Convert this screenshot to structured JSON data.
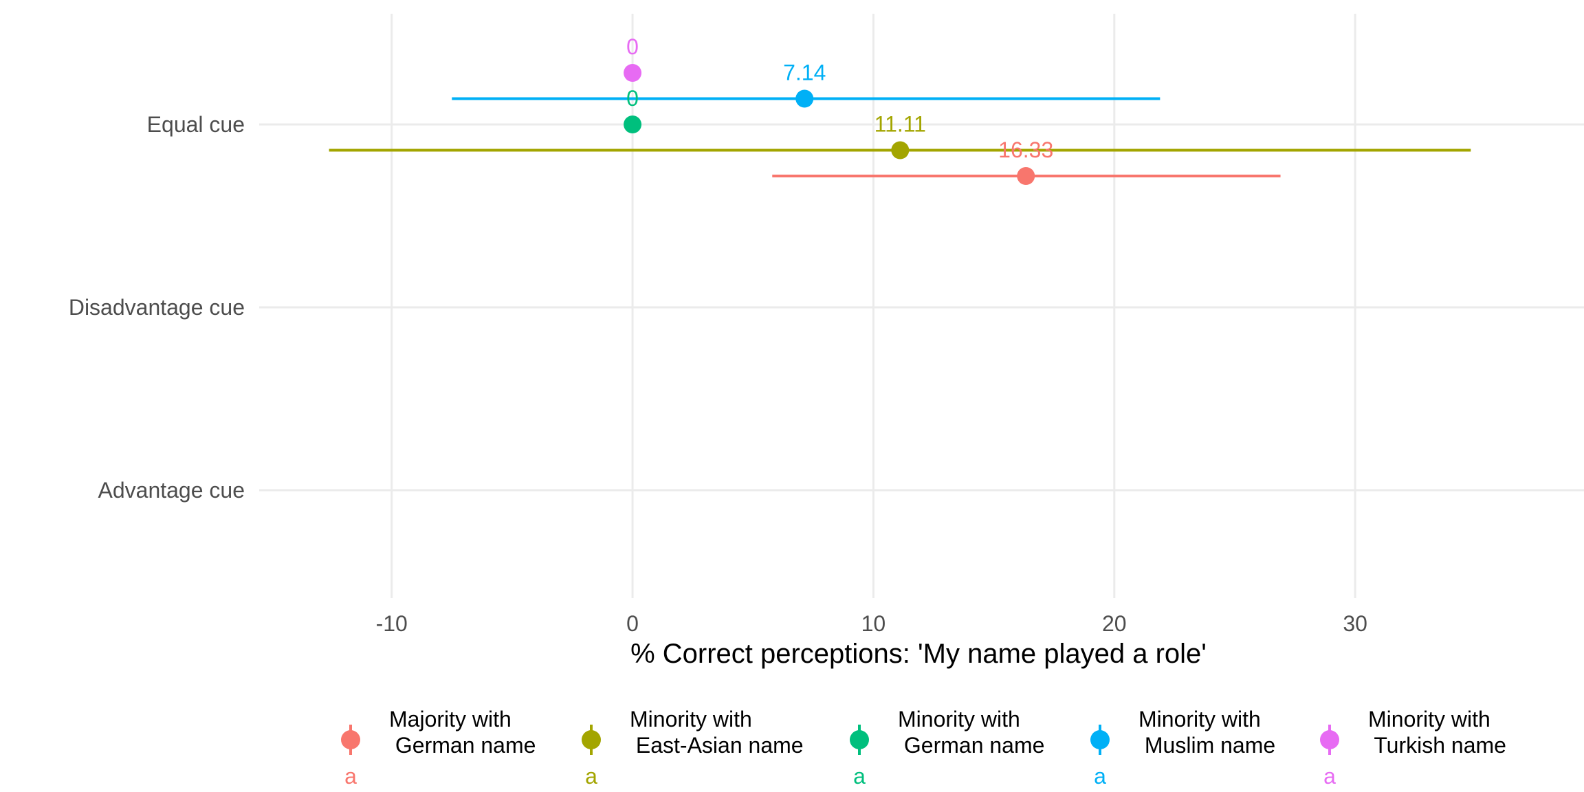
{
  "chart_data": {
    "type": "scatter",
    "subtype": "dot-with-error-bars",
    "title": "",
    "xlabel": "% Correct perceptions: 'My name played a role'",
    "ylabel": "",
    "xlim": [
      -15.5,
      39.5
    ],
    "x_ticks": [
      {
        "value": -10,
        "label": "-10"
      },
      {
        "value": 0,
        "label": "0"
      },
      {
        "value": 10,
        "label": "10"
      },
      {
        "value": 20,
        "label": "20"
      },
      {
        "value": 30,
        "label": "30"
      }
    ],
    "categories": [
      "Equal cue",
      "Disadvantage cue",
      "Advantage cue"
    ],
    "grid": true,
    "legend_position": "bottom",
    "series": [
      {
        "name": "Majority with\n German name",
        "color": "#F8766D",
        "legend_glyph": "a",
        "points": [
          {
            "category": "Equal cue",
            "value": 16.33,
            "lower": 5.8,
            "upper": 26.9,
            "label": "16.33"
          }
        ]
      },
      {
        "name": "Minority with\n East-Asian name",
        "color": "#A3A500",
        "legend_glyph": "a",
        "points": [
          {
            "category": "Equal cue",
            "value": 11.11,
            "lower": -12.6,
            "upper": 34.8,
            "label": "11.11"
          }
        ]
      },
      {
        "name": "Minority with\n German name",
        "color": "#00BF7D",
        "legend_glyph": "a",
        "points": [
          {
            "category": "Equal cue",
            "value": 0,
            "lower": 0,
            "upper": 0,
            "label": "0"
          }
        ]
      },
      {
        "name": "Minority with\n Muslim name",
        "color": "#00B0F6",
        "legend_glyph": "a",
        "points": [
          {
            "category": "Equal cue",
            "value": 7.14,
            "lower": -7.5,
            "upper": 21.9,
            "label": "7.14"
          }
        ]
      },
      {
        "name": "Minority with\n Turkish name",
        "color": "#E76BF3",
        "legend_glyph": "a",
        "points": [
          {
            "category": "Equal cue",
            "value": 0,
            "lower": 0,
            "upper": 0,
            "label": "0"
          }
        ]
      }
    ]
  }
}
